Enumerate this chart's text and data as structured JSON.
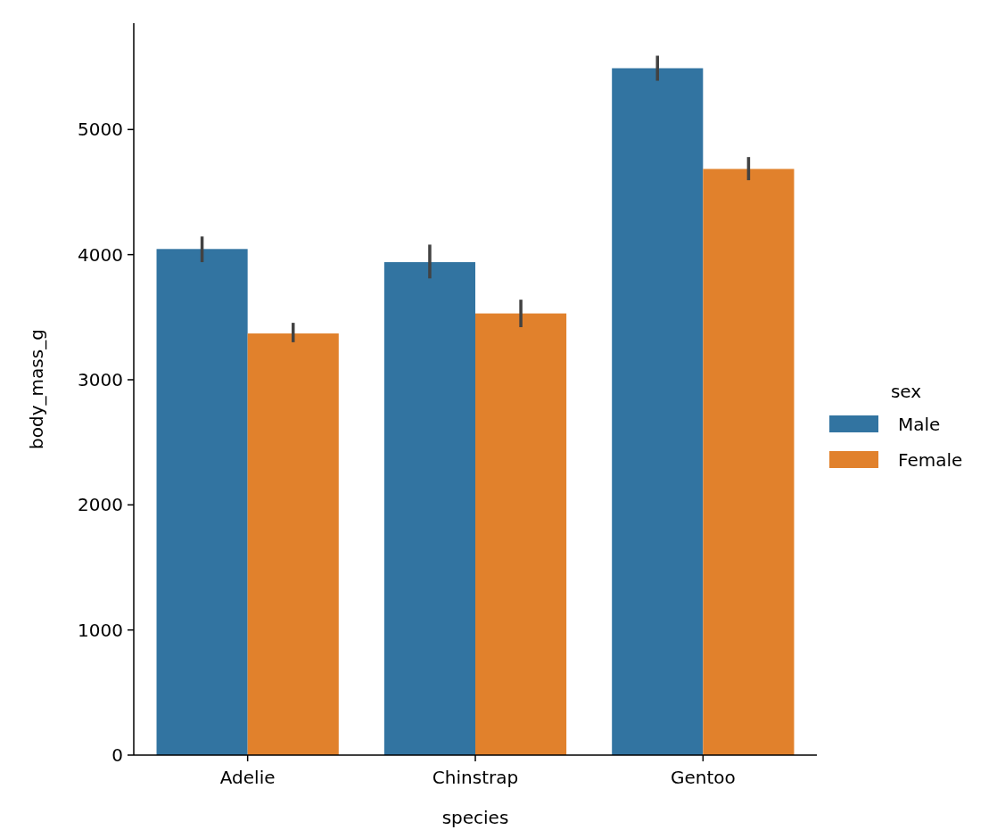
{
  "chart_data": {
    "type": "bar",
    "xlabel": "species",
    "ylabel": "body_mass_g",
    "legend_title": "sex",
    "legend": "right",
    "categories": [
      "Adelie",
      "Chinstrap",
      "Gentoo"
    ],
    "series": [
      {
        "name": "Male",
        "color": "#3274a1",
        "values": [
          4045,
          3940,
          5490
        ],
        "errors": [
          [
            3940,
            4145
          ],
          [
            3810,
            4080
          ],
          [
            5390,
            5590
          ]
        ]
      },
      {
        "name": "Female",
        "color": "#e1812c",
        "values": [
          3370,
          3530,
          4685
        ],
        "errors": [
          [
            3300,
            3455
          ],
          [
            3420,
            3640
          ],
          [
            4595,
            4780
          ]
        ]
      }
    ],
    "ylim": [
      0,
      5850
    ],
    "yticks": [
      0,
      1000,
      2000,
      3000,
      4000,
      5000
    ]
  }
}
